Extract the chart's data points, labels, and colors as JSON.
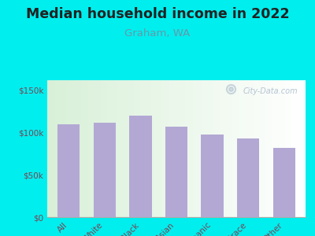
{
  "title": "Median household income in 2022",
  "subtitle": "Graham, WA",
  "categories": [
    "All",
    "White",
    "Black",
    "Asian",
    "Hispanic",
    "Multirace",
    "Other"
  ],
  "values": [
    110000,
    112000,
    120000,
    107000,
    98000,
    93000,
    82000
  ],
  "bar_color": "#b3a8d4",
  "bg_outer": "#00EEEE",
  "title_fontsize": 12.5,
  "subtitle_fontsize": 9.5,
  "subtitle_color": "#6699aa",
  "tick_color": "#7a4455",
  "yticks": [
    0,
    50000,
    100000,
    150000
  ],
  "ytick_labels": [
    "$0",
    "$50k",
    "$100k",
    "$150k"
  ],
  "ylim": [
    0,
    162000
  ],
  "watermark": "City-Data.com",
  "watermark_color": "#aabbcc"
}
